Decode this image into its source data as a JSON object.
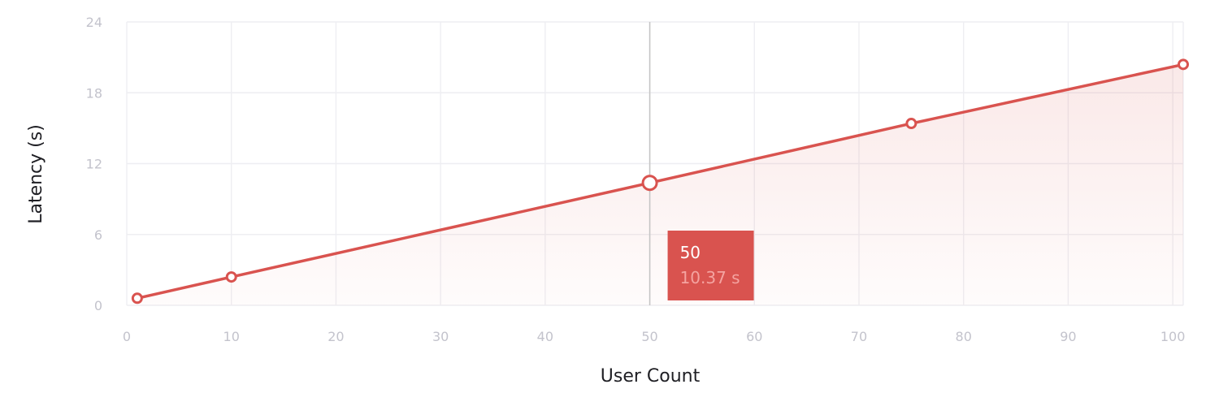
{
  "colors": {
    "line": "#d9534f",
    "grid": "#eeeef2",
    "tick": "#c3c3cc",
    "axis_title": "#1f1f24",
    "tooltip_bg": "#d9534f",
    "tooltip_value": "#f4a3a0",
    "crosshair": "#c4c4c4"
  },
  "chart_data": {
    "type": "area",
    "xlabel": "User Count",
    "ylabel": "Latency (s)",
    "xlim": [
      0,
      101
    ],
    "ylim": [
      0,
      24
    ],
    "x_ticks": [
      "0",
      "10",
      "20",
      "30",
      "40",
      "50",
      "60",
      "70",
      "80",
      "90",
      "100"
    ],
    "y_ticks": [
      "0",
      "6",
      "12",
      "18",
      "24"
    ],
    "grid": true,
    "series": [
      {
        "x": [
          1,
          10,
          50,
          75,
          101
        ],
        "y": [
          0.6,
          2.4,
          10.37,
          15.4,
          20.4
        ]
      }
    ],
    "tooltip": {
      "x_label": "50",
      "y_label": "10.37 s",
      "x": 50,
      "y": 10.37
    }
  }
}
